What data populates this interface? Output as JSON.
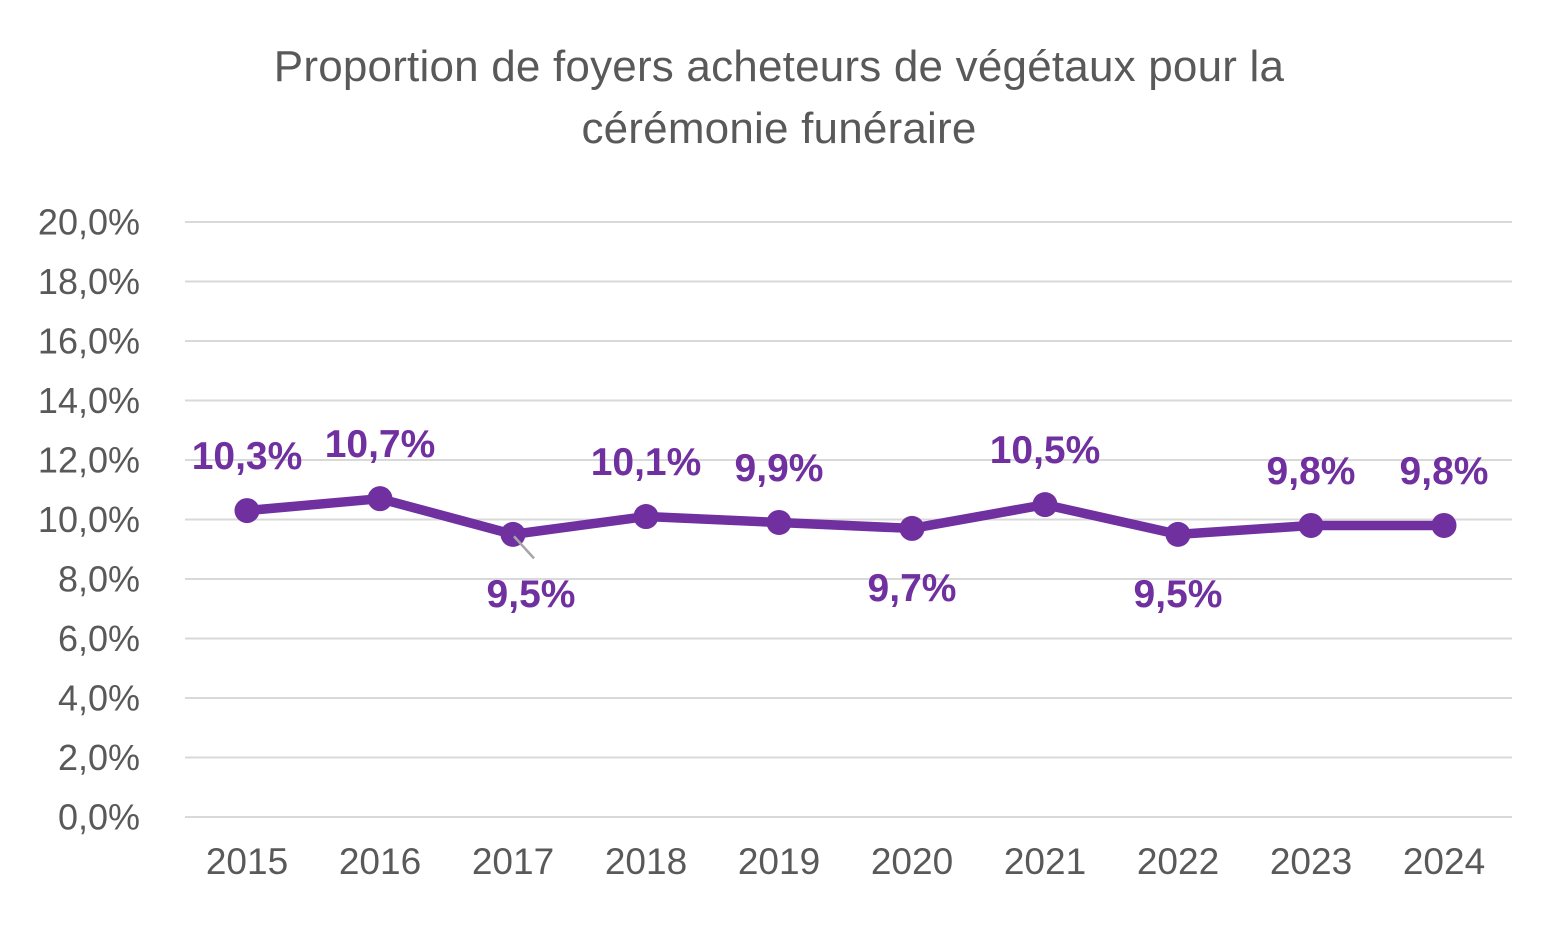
{
  "chart_data": {
    "type": "line",
    "title": "Proportion de foyers acheteurs de végétaux pour la cérémonie funéraire",
    "categories": [
      "2015",
      "2016",
      "2017",
      "2018",
      "2019",
      "2020",
      "2021",
      "2022",
      "2023",
      "2024"
    ],
    "values": [
      10.3,
      10.7,
      9.5,
      10.1,
      9.9,
      9.7,
      10.5,
      9.5,
      9.8,
      9.8
    ],
    "point_labels": [
      "10,3%",
      "10,7%",
      "9,5%",
      "10,1%",
      "9,9%",
      "9,7%",
      "10,5%",
      "9,5%",
      "9,8%",
      "9,8%"
    ],
    "label_positions": [
      "above",
      "above",
      "below",
      "above",
      "above",
      "below",
      "above",
      "below",
      "above",
      "above"
    ],
    "leader_line_index": 2,
    "xlabel": "",
    "ylabel": "",
    "ylim": [
      0,
      20
    ],
    "ytick_step": 2,
    "ytick_labels": [
      "0,0%",
      "2,0%",
      "4,0%",
      "6,0%",
      "8,0%",
      "10,0%",
      "12,0%",
      "14,0%",
      "16,0%",
      "18,0%",
      "20,0%"
    ],
    "grid": true,
    "legend": "none",
    "colors": {
      "line": "#7030A0",
      "marker": "#7030A0",
      "data_label": "#7030A0",
      "axis_text": "#595959",
      "title_text": "#595959",
      "gridline": "#d9d9d9",
      "leader_line": "#a6a6a6",
      "background": "#ffffff"
    }
  }
}
